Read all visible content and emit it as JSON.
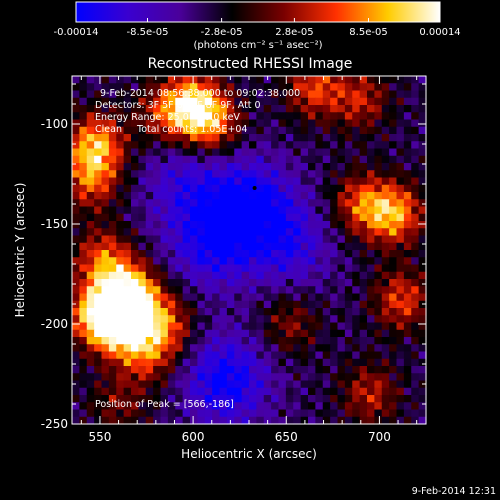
{
  "chart_data": {
    "type": "heatmap",
    "title": "Reconstructed RHESSI Image",
    "xlabel": "Heliocentric X (arcsec)",
    "ylabel": "Heliocentric Y (arcsec)",
    "x_ticks": [
      "550",
      "600",
      "650",
      "700"
    ],
    "x_tick_values": [
      550,
      600,
      650,
      700
    ],
    "y_ticks": [
      "-250",
      "-200",
      "-150",
      "-100"
    ],
    "y_tick_values": [
      -250,
      -200,
      -150,
      -100
    ],
    "xlim": [
      535,
      725
    ],
    "ylim": [
      -250,
      -76
    ],
    "colorbar": {
      "tick_labels": [
        "-0.00014",
        "-8.5e-05",
        "-2.8e-05",
        "2.8e-05",
        "8.5e-05",
        "0.00014"
      ],
      "tick_values": [
        -0.00014,
        -8.5e-05,
        -2.8e-05,
        2.8e-05,
        8.5e-05,
        0.00014
      ],
      "range": [
        -0.00014,
        0.00014
      ],
      "unit_text": "(photons cm⁻² s⁻¹ asec⁻²)",
      "colormap_stops": [
        "#0000ff",
        "#3a00d0",
        "#4a009a",
        "#000000",
        "#7a0000",
        "#ff3000",
        "#ffcc00",
        "#ffffff"
      ]
    },
    "annotations": {
      "time_range": "9-Feb-2014 08:56:38.000 to 09:02:38.000",
      "detectors": "Detectors: 3F 5F 6F 7F 8F 9F, Att 0",
      "energy_range": "Energy Range: 25.0 - 50.0 keV",
      "clean_counts": "Clean     Total counts: 1.05E+04",
      "peak_position": "Position of Peak = [566,-186]",
      "plot_date": "9-Feb-2014 12:31"
    },
    "hot_sources": [
      {
        "x": 566,
        "y": -186,
        "amplitude": 1.0
      },
      {
        "x": 560,
        "y": -200,
        "amplitude": 0.9
      },
      {
        "x": 548,
        "y": -195,
        "amplitude": 0.7
      },
      {
        "x": 552,
        "y": -168,
        "amplitude": 0.6
      },
      {
        "x": 585,
        "y": -200,
        "amplitude": 0.55
      },
      {
        "x": 575,
        "y": -215,
        "amplitude": 0.5
      },
      {
        "x": 548,
        "y": -110,
        "amplitude": 0.75
      },
      {
        "x": 545,
        "y": -128,
        "amplitude": 0.55
      },
      {
        "x": 600,
        "y": -90,
        "amplitude": 0.75
      },
      {
        "x": 610,
        "y": -100,
        "amplitude": 0.6
      },
      {
        "x": 585,
        "y": -95,
        "amplitude": 0.45
      },
      {
        "x": 708,
        "y": -145,
        "amplitude": 0.75
      },
      {
        "x": 690,
        "y": -140,
        "amplitude": 0.55
      },
      {
        "x": 665,
        "y": -82,
        "amplitude": 0.55
      },
      {
        "x": 690,
        "y": -88,
        "amplitude": 0.45
      },
      {
        "x": 712,
        "y": -188,
        "amplitude": 0.55
      },
      {
        "x": 695,
        "y": -235,
        "amplitude": 0.45
      },
      {
        "x": 652,
        "y": -200,
        "amplitude": 0.35
      },
      {
        "x": 560,
        "y": -240,
        "amplitude": 0.3
      }
    ],
    "cold_sources": [
      {
        "x": 630,
        "y": -140,
        "amplitude": 0.6
      },
      {
        "x": 610,
        "y": -160,
        "amplitude": 0.5
      },
      {
        "x": 618,
        "y": -228,
        "amplitude": 0.6
      },
      {
        "x": 652,
        "y": -160,
        "amplitude": 0.4
      },
      {
        "x": 595,
        "y": -130,
        "amplitude": 0.35
      }
    ]
  }
}
